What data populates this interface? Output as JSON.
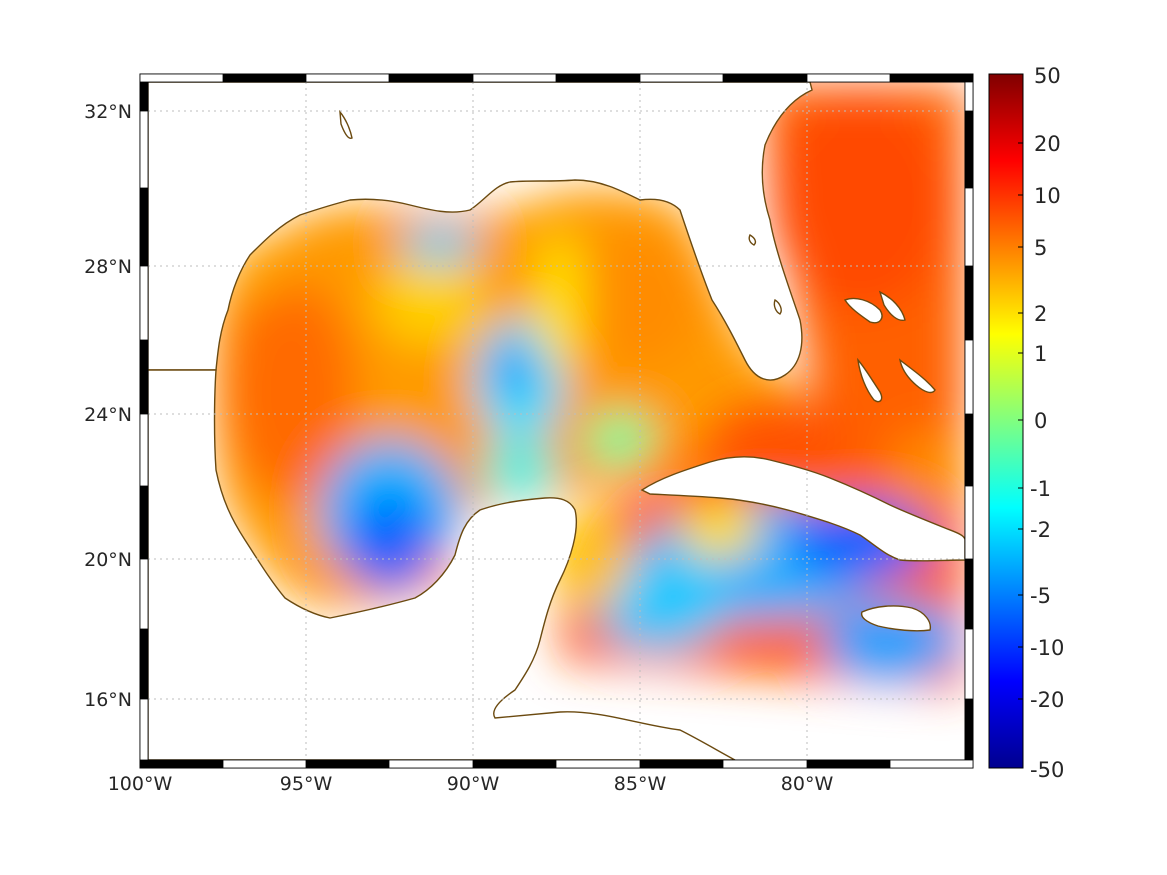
{
  "map": {
    "projection": "mercator",
    "lon_range": [
      -100,
      -75
    ],
    "lat_range": [
      14.3,
      32.9
    ],
    "grid": true,
    "frame_style": "alternating black/white",
    "coastline_color": "#6b4a10",
    "land_color": "#ffffff",
    "lon_ticks": [
      {
        "value": -100,
        "label": "100°W"
      },
      {
        "value": -95,
        "label": "95°W"
      },
      {
        "value": -90,
        "label": "90°W"
      },
      {
        "value": -85,
        "label": "85°W"
      },
      {
        "value": -80,
        "label": "80°W"
      }
    ],
    "lat_ticks": [
      {
        "value": 16,
        "label": "16°N"
      },
      {
        "value": 20,
        "label": "20°N"
      },
      {
        "value": 24,
        "label": "24°N"
      },
      {
        "value": 28,
        "label": "28°N"
      },
      {
        "value": 32,
        "label": "32°N"
      }
    ]
  },
  "colorbar": {
    "colormap": "jet",
    "placement": "right",
    "scale": "nonlinear (symmetric log-like)",
    "ticks": [
      "50",
      "20",
      "10",
      "5",
      "2",
      "1",
      "0",
      "-1",
      "-2",
      "-5",
      "-10",
      "-20",
      "-50"
    ],
    "tick_values": [
      50,
      20,
      10,
      5,
      2,
      1,
      0,
      -1,
      -2,
      -5,
      -10,
      -20,
      -50
    ]
  },
  "field": {
    "description_regions": [
      {
        "region": "western Gulf",
        "approx_value": 7
      },
      {
        "region": "central Gulf low",
        "approx_value": -2
      },
      {
        "region": "Bay of Campeche",
        "approx_value": -4
      },
      {
        "region": "Atlantic off Florida",
        "approx_value": 10
      },
      {
        "region": "Caribbean south of Cuba",
        "approx_value": -4
      }
    ]
  }
}
